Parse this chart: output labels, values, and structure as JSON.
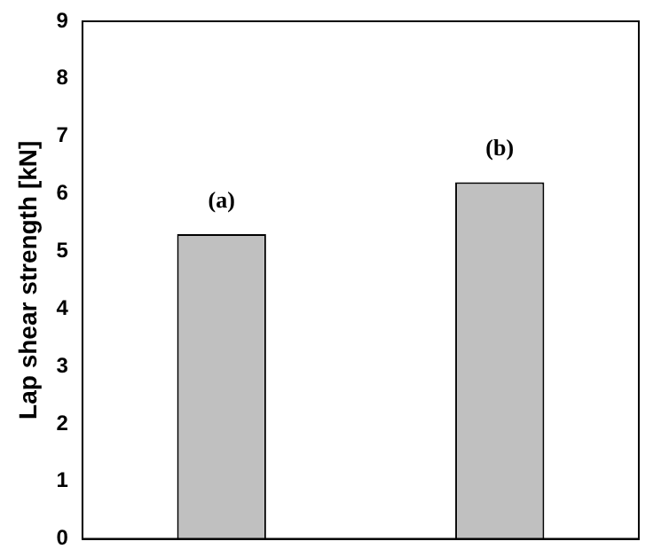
{
  "chart_data": {
    "type": "bar",
    "ylabel": "Lap shear strength [kN]",
    "categories": [
      null,
      null
    ],
    "values": [
      5.3,
      6.2
    ],
    "color": "#c0c0c0",
    "ylim": [
      0,
      9
    ],
    "yticks": [
      0,
      1,
      2,
      3,
      4,
      5,
      6,
      7,
      8,
      9
    ],
    "grid": false,
    "legend": false,
    "annotations": [
      "(a)",
      "(b)"
    ]
  }
}
